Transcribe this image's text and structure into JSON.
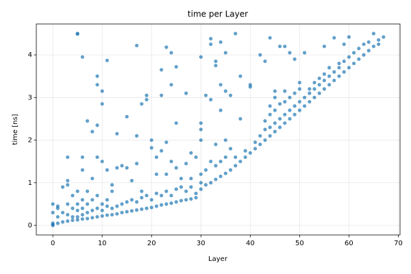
{
  "chart_data": {
    "type": "scatter",
    "title": "time per Layer",
    "xlabel": "Layer",
    "ylabel": "time [ns]",
    "color": "#1f77b4",
    "grid": true,
    "x": [
      0,
      0,
      0,
      0,
      0,
      1,
      1,
      1,
      1,
      2,
      2,
      2,
      3,
      3,
      3,
      3,
      3,
      3,
      4,
      4,
      4,
      4,
      5,
      5,
      5,
      5,
      5,
      5,
      5,
      6,
      6,
      6,
      6,
      6,
      6,
      6,
      7,
      7,
      7,
      7,
      7,
      8,
      8,
      8,
      8,
      8,
      9,
      9,
      9,
      9,
      9,
      9,
      9,
      10,
      10,
      10,
      10,
      10,
      10,
      11,
      11,
      11,
      11,
      11,
      12,
      12,
      12,
      12,
      13,
      13,
      13,
      13,
      14,
      14,
      14,
      15,
      15,
      15,
      15,
      16,
      16,
      16,
      17,
      17,
      17,
      17,
      17,
      18,
      18,
      18,
      18,
      19,
      19,
      19,
      19,
      20,
      20,
      20,
      20,
      21,
      21,
      21,
      21,
      22,
      22,
      22,
      22,
      22,
      23,
      23,
      23,
      23,
      23,
      24,
      24,
      24,
      24,
      24,
      25,
      25,
      25,
      25,
      25,
      26,
      26,
      26,
      27,
      27,
      27,
      27,
      28,
      28,
      28,
      28,
      29,
      29,
      29,
      30,
      30,
      30,
      30,
      30,
      30,
      30,
      31,
      31,
      31,
      32,
      32,
      32,
      32,
      32,
      33,
      33,
      33,
      33,
      33,
      34,
      34,
      34,
      34,
      34,
      35,
      35,
      35,
      35,
      35,
      36,
      36,
      36,
      37,
      37,
      37,
      38,
      38,
      38,
      39,
      39,
      40,
      40,
      40,
      41,
      41,
      42,
      42,
      42,
      43,
      43,
      43,
      43,
      44,
      44,
      44,
      44,
      44,
      45,
      45,
      45,
      45,
      45,
      46,
      46,
      46,
      46,
      47,
      47,
      47,
      47,
      47,
      48,
      48,
      48,
      48,
      49,
      49,
      49,
      49,
      50,
      50,
      50,
      50,
      51,
      51,
      51,
      52,
      52,
      52,
      53,
      53,
      53,
      54,
      54,
      54,
      55,
      55,
      55,
      55,
      56,
      56,
      56,
      57,
      57,
      57,
      58,
      58,
      58,
      59,
      59,
      59,
      60,
      60,
      60,
      61,
      61,
      62,
      62,
      63,
      63,
      64,
      64,
      65,
      65,
      66,
      66,
      67
    ],
    "values": [
      0,
      0.02,
      0.05,
      0.3,
      0.5,
      0.05,
      0.2,
      0.4,
      0.45,
      0.08,
      0.3,
      0.9,
      0.1,
      0.25,
      0.5,
      1.6,
      1.05,
      0.95,
      0.12,
      0.2,
      0.4,
      0.7,
      0.13,
      0.2,
      0.35,
      0.5,
      4.5,
      4.49,
      0.8,
      0.15,
      0.25,
      0.4,
      0.6,
      1.6,
      1.3,
      3.95,
      0.16,
      0.3,
      0.5,
      0.8,
      2.45,
      0.18,
      0.35,
      0.6,
      2.2,
      1.1,
      0.2,
      0.4,
      0.7,
      3.5,
      3.3,
      2.35,
      1.6,
      0.22,
      0.35,
      0.5,
      1.5,
      3.15,
      2.85,
      0.24,
      0.45,
      0.6,
      3.87,
      1.3,
      0.25,
      0.4,
      0.8,
      0.95,
      0.27,
      0.45,
      2.15,
      1.35,
      0.3,
      0.5,
      1.4,
      0.32,
      0.55,
      2.55,
      1.35,
      0.34,
      0.6,
      1.05,
      0.36,
      0.55,
      4.22,
      2.1,
      1.45,
      0.38,
      0.65,
      2.85,
      0.8,
      0.4,
      0.7,
      3.05,
      2.95,
      0.42,
      0.6,
      1.82,
      2.0,
      0.45,
      0.75,
      1.2,
      1.6,
      0.48,
      0.7,
      3.65,
      3.05,
      1.75,
      0.5,
      0.8,
      4.18,
      1.95,
      1.2,
      0.52,
      0.7,
      4.05,
      1.5,
      3.3,
      0.55,
      0.85,
      2.4,
      1.35,
      3.72,
      0.58,
      0.9,
      1.1,
      0.6,
      0.8,
      3.1,
      1.45,
      0.62,
      0.9,
      1.7,
      1.1,
      0.65,
      0.75,
      1.6,
      0.85,
      1.0,
      1.2,
      2.4,
      2.25,
      3.95,
      2.0,
      0.95,
      1.3,
      3.05,
      1.0,
      1.5,
      4.38,
      4.25,
      2.95,
      1.08,
      1.4,
      3.85,
      3.75,
      1.9,
      1.15,
      1.5,
      4.3,
      3.3,
      2.7,
      1.22,
      1.6,
      4.05,
      2.0,
      3.15,
      1.3,
      1.8,
      3.05,
      1.4,
      4.5,
      1.6,
      1.5,
      3.5,
      2.5,
      1.6,
      1.75,
      1.7,
      3.25,
      3.3,
      1.8,
      1.95,
      1.9,
      4.0,
      2.1,
      2.0,
      2.25,
      2.45,
      3.85,
      2.1,
      2.3,
      2.6,
      2.8,
      4.4,
      2.2,
      2.4,
      2.7,
      3.15,
      3.0,
      2.3,
      2.5,
      2.85,
      4.2,
      2.4,
      2.6,
      2.9,
      3.15,
      4.2,
      2.5,
      2.7,
      3.0,
      4.05,
      2.6,
      2.8,
      3.1,
      3.9,
      2.7,
      2.9,
      3.2,
      3.35,
      2.8,
      3.0,
      4.05,
      2.9,
      3.1,
      3.2,
      3.0,
      3.2,
      3.35,
      3.1,
      3.3,
      3.45,
      3.2,
      3.4,
      3.55,
      4.2,
      3.3,
      3.5,
      3.7,
      3.4,
      3.6,
      4.4,
      3.5,
      3.7,
      3.8,
      3.6,
      3.85,
      4.25,
      3.7,
      3.95,
      4.42,
      3.8,
      4.05,
      3.9,
      4.15,
      4.0,
      4.25,
      4.1,
      4.3,
      4.2,
      4.5,
      4.25,
      4.35,
      4.42
    ],
    "xlim": [
      -3.35,
      70.35
    ],
    "ylim": [
      -0.225,
      4.725
    ],
    "xticks": [
      0,
      10,
      20,
      30,
      40,
      50,
      60,
      70
    ],
    "yticks": [
      0,
      1,
      2,
      3,
      4
    ]
  }
}
